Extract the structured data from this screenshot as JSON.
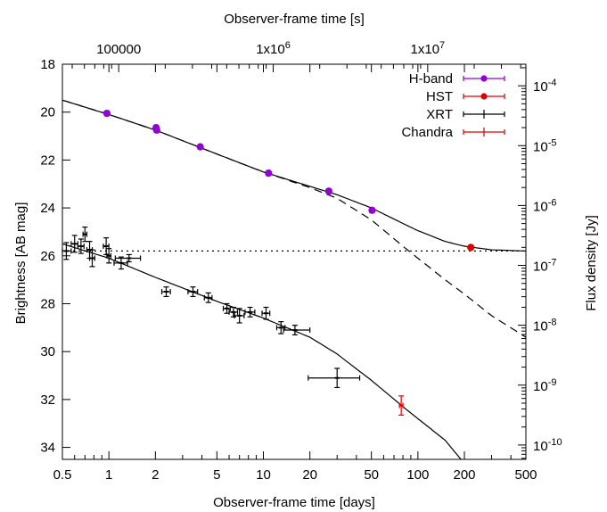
{
  "chart_data": {
    "type": "scatter",
    "xlabel": "Observer-frame time [days]",
    "ylabel": "Brightness [AB mag]",
    "x2label": "Observer-frame time [s]",
    "y2label": "Flux density [Jy]",
    "xscale": "log",
    "xlim": [
      0.5,
      500
    ],
    "ylim": [
      34.5,
      18
    ],
    "y_inverted": true,
    "x_ticks": [
      {
        "value": 0.5,
        "label": "0.5"
      },
      {
        "value": 1,
        "label": "1"
      },
      {
        "value": 2,
        "label": "2"
      },
      {
        "value": 5,
        "label": "5"
      },
      {
        "value": 10,
        "label": "10"
      },
      {
        "value": 20,
        "label": "20"
      },
      {
        "value": 50,
        "label": "50"
      },
      {
        "value": 100,
        "label": "100"
      },
      {
        "value": 200,
        "label": "200"
      },
      {
        "value": 500,
        "label": "500"
      }
    ],
    "y_ticks": [
      {
        "value": 18,
        "label": "18"
      },
      {
        "value": 20,
        "label": "20"
      },
      {
        "value": 22,
        "label": "22"
      },
      {
        "value": 24,
        "label": "24"
      },
      {
        "value": 26,
        "label": "26"
      },
      {
        "value": 28,
        "label": "28"
      },
      {
        "value": 30,
        "label": "30"
      },
      {
        "value": 32,
        "label": "32"
      },
      {
        "value": 34,
        "label": "34"
      }
    ],
    "x2_ticks": [
      {
        "value": 100000,
        "base": "100000",
        "exp": ""
      },
      {
        "value": 1000000,
        "base": "1x10",
        "exp": "6"
      },
      {
        "value": 10000000,
        "base": "1x10",
        "exp": "7"
      }
    ],
    "y2_ticks": [
      {
        "value": 0.0001,
        "base": "10",
        "exp": "-4"
      },
      {
        "value": 1e-05,
        "base": "10",
        "exp": "-5"
      },
      {
        "value": 1e-06,
        "base": "10",
        "exp": "-6"
      },
      {
        "value": 1e-07,
        "base": "10",
        "exp": "-7"
      },
      {
        "value": 1e-08,
        "base": "10",
        "exp": "-8"
      },
      {
        "value": 1e-09,
        "base": "10",
        "exp": "-9"
      },
      {
        "value": 1e-10,
        "base": "10",
        "exp": "-10"
      }
    ],
    "legend_position": "top-right",
    "series": [
      {
        "name": "H-band",
        "color": "#9400d3",
        "marker": "circle",
        "points": [
          {
            "x": 0.97,
            "y": 20.05,
            "yerr": 0.1
          },
          {
            "x": 2.02,
            "y": 20.65,
            "yerr": 0.1
          },
          {
            "x": 2.04,
            "y": 20.75,
            "yerr": 0.1
          },
          {
            "x": 3.9,
            "y": 21.45,
            "yerr": 0.08
          },
          {
            "x": 10.8,
            "y": 22.55,
            "yerr": 0.1
          },
          {
            "x": 26.5,
            "y": 23.3,
            "yerr": 0.1
          },
          {
            "x": 50.5,
            "y": 24.1,
            "yerr": 0.1
          }
        ]
      },
      {
        "name": "HST",
        "color": "#e00000",
        "marker": "circle",
        "points": [
          {
            "x": 220,
            "y": 25.65,
            "yerr": 0.05
          }
        ]
      },
      {
        "name": "XRT",
        "color": "#000000",
        "marker": "cross",
        "points": [
          {
            "x": 0.53,
            "y": 25.8,
            "xlo": 0.5,
            "xhi": 0.57,
            "yerr": 0.35
          },
          {
            "x": 0.6,
            "y": 25.5,
            "xlo": 0.57,
            "xhi": 0.63,
            "yerr": 0.35
          },
          {
            "x": 0.66,
            "y": 25.6,
            "xlo": 0.63,
            "xhi": 0.69,
            "yerr": 0.3
          },
          {
            "x": 0.7,
            "y": 25.1,
            "xlo": 0.68,
            "xhi": 0.72,
            "yerr": 0.3
          },
          {
            "x": 0.75,
            "y": 25.75,
            "xlo": 0.72,
            "xhi": 0.78,
            "yerr": 0.35
          },
          {
            "x": 0.78,
            "y": 26.1,
            "xlo": 0.75,
            "xhi": 0.81,
            "yerr": 0.35
          },
          {
            "x": 0.96,
            "y": 25.6,
            "xlo": 0.92,
            "xhi": 1.0,
            "yerr": 0.35
          },
          {
            "x": 1.0,
            "y": 26.0,
            "xlo": 0.97,
            "xhi": 1.03,
            "yerr": 0.3
          },
          {
            "x": 1.2,
            "y": 26.3,
            "xlo": 1.08,
            "xhi": 1.32,
            "yerr": 0.25
          },
          {
            "x": 1.35,
            "y": 26.1,
            "xlo": 1.1,
            "xhi": 1.6,
            "yerr": 0.15
          },
          {
            "x": 2.35,
            "y": 27.5,
            "xlo": 2.2,
            "xhi": 2.5,
            "yerr": 0.2
          },
          {
            "x": 3.5,
            "y": 27.5,
            "xlo": 3.25,
            "xhi": 3.75,
            "yerr": 0.2
          },
          {
            "x": 4.4,
            "y": 27.75,
            "xlo": 4.15,
            "xhi": 4.65,
            "yerr": 0.2
          },
          {
            "x": 5.8,
            "y": 28.2,
            "xlo": 5.5,
            "xhi": 6.1,
            "yerr": 0.2
          },
          {
            "x": 6.4,
            "y": 28.35,
            "xlo": 6.0,
            "xhi": 6.8,
            "yerr": 0.2
          },
          {
            "x": 7.0,
            "y": 28.5,
            "xlo": 6.5,
            "xhi": 7.5,
            "yerr": 0.3
          },
          {
            "x": 8.2,
            "y": 28.35,
            "xlo": 7.6,
            "xhi": 8.8,
            "yerr": 0.2
          },
          {
            "x": 10.4,
            "y": 28.4,
            "xlo": 9.8,
            "xhi": 11.0,
            "yerr": 0.25
          },
          {
            "x": 13,
            "y": 29.0,
            "xlo": 12.2,
            "xhi": 13.8,
            "yerr": 0.25
          },
          {
            "x": 16,
            "y": 29.1,
            "xlo": 13.5,
            "xhi": 20,
            "yerr": 0.2
          },
          {
            "x": 30,
            "y": 31.1,
            "xlo": 19.5,
            "xhi": 42,
            "yerr": 0.4
          }
        ]
      },
      {
        "name": "Chandra",
        "color": "#e00000",
        "marker": "cross",
        "points": [
          {
            "x": 78,
            "y": 32.25,
            "xlo": 76,
            "xhi": 80,
            "yerr": 0.4
          }
        ]
      }
    ],
    "curves": [
      {
        "style": "solid",
        "color": "#000000",
        "points": [
          [
            0.5,
            19.5
          ],
          [
            1,
            20.1
          ],
          [
            2,
            20.75
          ],
          [
            5,
            21.75
          ],
          [
            10,
            22.5
          ],
          [
            20,
            23.1
          ],
          [
            30,
            23.45
          ],
          [
            50,
            24.0
          ],
          [
            80,
            24.65
          ],
          [
            100,
            24.95
          ],
          [
            150,
            25.4
          ],
          [
            200,
            25.6
          ],
          [
            300,
            25.75
          ],
          [
            500,
            25.8
          ]
        ]
      },
      {
        "style": "dashed",
        "color": "#000000",
        "points": [
          [
            0.5,
            19.5
          ],
          [
            1,
            20.1
          ],
          [
            2,
            20.75
          ],
          [
            5,
            21.75
          ],
          [
            10,
            22.5
          ],
          [
            20,
            23.15
          ],
          [
            30,
            23.6
          ],
          [
            50,
            24.5
          ],
          [
            80,
            25.6
          ],
          [
            100,
            26.1
          ],
          [
            150,
            27.0
          ],
          [
            200,
            27.6
          ],
          [
            300,
            28.5
          ],
          [
            500,
            29.4
          ]
        ]
      },
      {
        "style": "dotted",
        "color": "#000000",
        "points": [
          [
            0.5,
            25.8
          ],
          [
            500,
            25.8
          ]
        ]
      },
      {
        "style": "solid",
        "color": "#000000",
        "points": [
          [
            0.5,
            25.5
          ],
          [
            1,
            26.1
          ],
          [
            2,
            26.9
          ],
          [
            5,
            27.9
          ],
          [
            10,
            28.6
          ],
          [
            20,
            29.4
          ],
          [
            30,
            30.1
          ],
          [
            50,
            31.2
          ],
          [
            80,
            32.3
          ],
          [
            100,
            32.8
          ],
          [
            150,
            33.7
          ],
          [
            190,
            34.5
          ]
        ]
      }
    ]
  }
}
